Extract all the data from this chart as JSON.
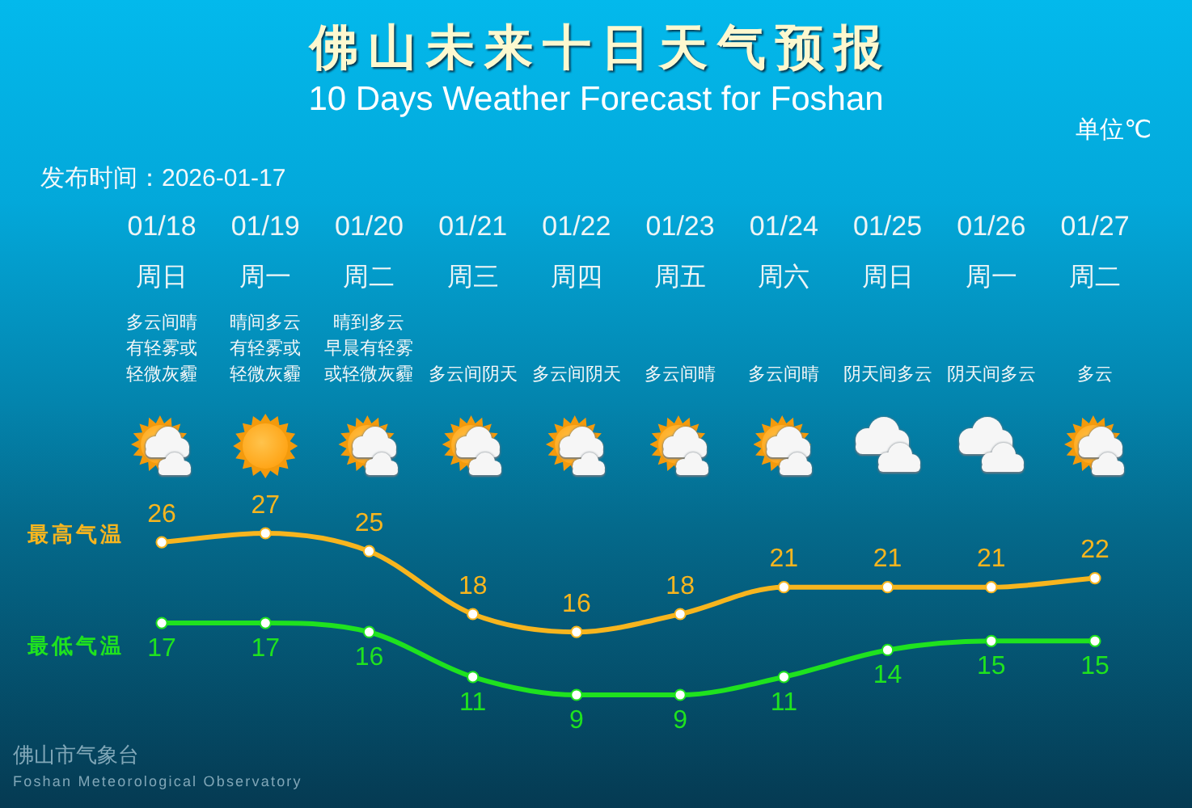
{
  "chart_data": {
    "type": "line",
    "title": "佛山未来十日天气预报",
    "subtitle": "10 Days Weather Forecast for Foshan",
    "annotations": [
      "单位℃",
      "发布时间：2026-01-17",
      "佛山市气象台",
      "Foshan Meteorological Observatory",
      "周日",
      "周一",
      "周二",
      "周三",
      "周四",
      "周五",
      "周六",
      "周日",
      "周一",
      "周二",
      "多云间晴有轻雾或轻微灰霾",
      "晴间多云有轻雾或轻微灰霾",
      "晴到多云早晨有轻雾或轻微灰霾",
      "多云间阴天",
      "多云间阴天",
      "多云间晴",
      "多云间晴",
      "阴天间多云",
      "阴天间多云",
      "多云"
    ],
    "categories": [
      "01/18",
      "01/19",
      "01/20",
      "01/21",
      "01/22",
      "01/23",
      "01/24",
      "01/25",
      "01/26",
      "01/27"
    ],
    "series": [
      {
        "name": "最高气温",
        "color": "#f7b51e",
        "values": [
          26,
          27,
          25,
          18,
          16,
          18,
          21,
          21,
          21,
          22
        ]
      },
      {
        "name": "最低气温",
        "color": "#1fe21f",
        "values": [
          17,
          17,
          16,
          11,
          9,
          9,
          11,
          14,
          15,
          15
        ]
      }
    ],
    "tick_labels": "x",
    "data_labels": true,
    "marker": "circle",
    "line_style": "solid"
  }
}
